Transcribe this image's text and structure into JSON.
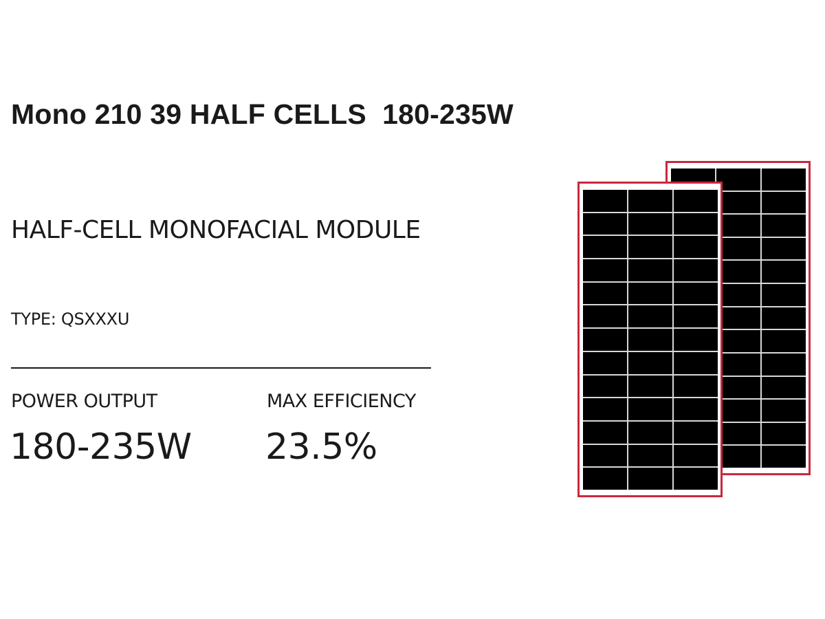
{
  "title": "Mono 210 39 HALF CELLS  180-235W",
  "subtitle": "HALF-CELL MONOFACIAL MODULE",
  "type_label": "TYPE: QSXXXU",
  "specs": [
    {
      "label": "POWER OUTPUT",
      "value": "180-235W"
    },
    {
      "label": "MAX EFFICIENCY",
      "value": "23.5%"
    }
  ],
  "panel_image": {
    "frame_color": "#c8283c",
    "cell_color": "#000000",
    "columns": 3,
    "rows": 13
  }
}
